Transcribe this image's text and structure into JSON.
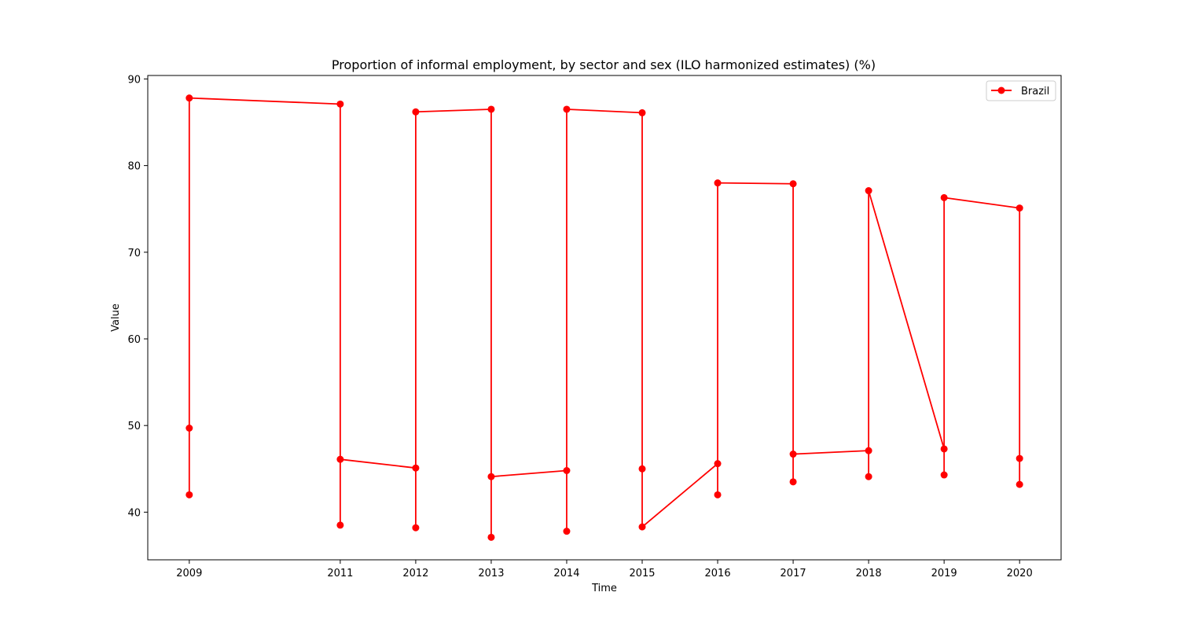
{
  "chart_data": {
    "type": "line",
    "title": "Proportion of informal employment, by sector and sex (ILO harmonized estimates) (%)",
    "xlabel": "Time",
    "ylabel": "Value",
    "xlim": [
      2008.45,
      2020.55
    ],
    "ylim": [
      34.5,
      90.4
    ],
    "xticks": [
      2009,
      2011,
      2012,
      2013,
      2014,
      2015,
      2016,
      2017,
      2018,
      2019,
      2020
    ],
    "yticks": [
      40,
      50,
      60,
      70,
      80,
      90
    ],
    "grid": false,
    "legend_position": "top-right",
    "series": [
      {
        "name": "Brazil",
        "color": "#ff0000",
        "marker": "circle",
        "points": [
          [
            2009,
            42.0
          ],
          [
            2009,
            49.7
          ],
          [
            2009,
            87.8
          ],
          [
            2011,
            87.1
          ],
          [
            2011,
            38.5
          ],
          [
            2011,
            46.1
          ],
          [
            2012,
            45.1
          ],
          [
            2012,
            38.2
          ],
          [
            2012,
            86.2
          ],
          [
            2013,
            86.5
          ],
          [
            2013,
            37.1
          ],
          [
            2013,
            44.1
          ],
          [
            2014,
            44.8
          ],
          [
            2014,
            37.8
          ],
          [
            2014,
            86.5
          ],
          [
            2015,
            86.1
          ],
          [
            2015,
            45.0
          ],
          [
            2015,
            38.3
          ],
          [
            2016,
            45.6
          ],
          [
            2016,
            42.0
          ],
          [
            2016,
            78.0
          ],
          [
            2017,
            77.9
          ],
          [
            2017,
            43.5
          ],
          [
            2017,
            46.7
          ],
          [
            2018,
            47.1
          ],
          [
            2018,
            44.1
          ],
          [
            2018,
            77.1
          ],
          [
            2019,
            47.3
          ],
          [
            2019,
            44.3
          ],
          [
            2019,
            76.3
          ],
          [
            2020,
            75.1
          ],
          [
            2020,
            46.2
          ],
          [
            2020,
            43.2
          ]
        ]
      }
    ]
  },
  "colors": {
    "series": "#ff0000",
    "axis": "#000000",
    "legend_border": "#cccccc"
  }
}
